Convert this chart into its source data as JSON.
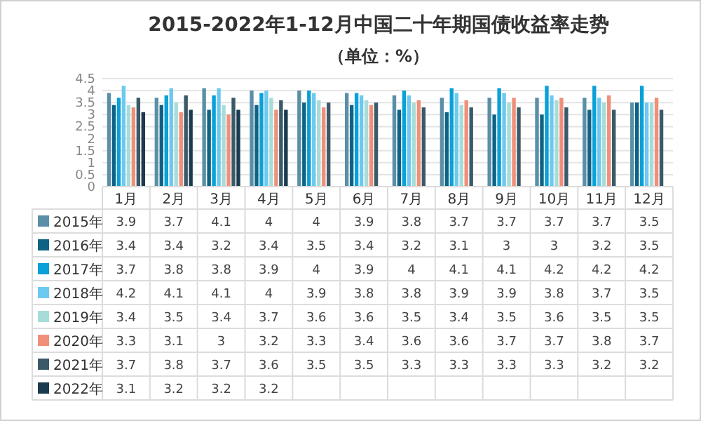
{
  "chart_data": {
    "type": "bar",
    "title": "2015-2022年1-12月中国二十年期国债收益率走势",
    "subtitle": "（单位：%）",
    "categories": [
      "1月",
      "2月",
      "3月",
      "4月",
      "5月",
      "6月",
      "7月",
      "8月",
      "9月",
      "10月",
      "11月",
      "12月"
    ],
    "series": [
      {
        "name": "2015年",
        "color": "#5b8fa8",
        "values": [
          3.9,
          3.7,
          4.1,
          4,
          4,
          3.9,
          3.8,
          3.7,
          3.7,
          3.7,
          3.7,
          3.5
        ]
      },
      {
        "name": "2016年",
        "color": "#0e6384",
        "values": [
          3.4,
          3.4,
          3.2,
          3.4,
          3.5,
          3.4,
          3.2,
          3.1,
          3,
          3,
          3.2,
          3.5
        ]
      },
      {
        "name": "2017年",
        "color": "#0aa0d8",
        "values": [
          3.7,
          3.8,
          3.8,
          3.9,
          4,
          3.9,
          4,
          4.1,
          4.1,
          4.2,
          4.2,
          4.2
        ]
      },
      {
        "name": "2018年",
        "color": "#6cc9f0",
        "values": [
          4.2,
          4.1,
          4.1,
          4,
          3.9,
          3.8,
          3.8,
          3.9,
          3.9,
          3.8,
          3.7,
          3.5
        ]
      },
      {
        "name": "2019年",
        "color": "#a8dcd8",
        "values": [
          3.4,
          3.5,
          3.4,
          3.7,
          3.6,
          3.6,
          3.5,
          3.4,
          3.5,
          3.6,
          3.5,
          3.5
        ]
      },
      {
        "name": "2020年",
        "color": "#f0907a",
        "values": [
          3.3,
          3.1,
          3,
          3.2,
          3.3,
          3.4,
          3.6,
          3.6,
          3.7,
          3.7,
          3.8,
          3.7
        ]
      },
      {
        "name": "2021年",
        "color": "#3a5a6a",
        "values": [
          3.7,
          3.8,
          3.7,
          3.6,
          3.5,
          3.5,
          3.3,
          3.3,
          3.3,
          3.3,
          3.2,
          3.2
        ]
      },
      {
        "name": "2022年",
        "color": "#1a3b4f",
        "values": [
          3.1,
          3.2,
          3.2,
          3.2,
          null,
          null,
          null,
          null,
          null,
          null,
          null,
          null
        ]
      }
    ],
    "ylim": [
      0,
      4.5
    ],
    "yticks": [
      0,
      0.5,
      1,
      1.5,
      2,
      2.5,
      3,
      3.5,
      4,
      4.5
    ],
    "grid": "y",
    "legend": "left",
    "data_labels": true
  }
}
